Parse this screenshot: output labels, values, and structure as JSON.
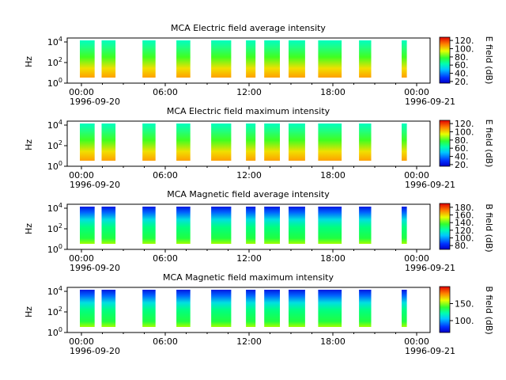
{
  "chart_data": [
    {
      "type": "heatmap",
      "title": "MCA  Electric field average intensity",
      "ylabel": "Hz",
      "yticks": [
        "10^0",
        "10^2",
        "10^4"
      ],
      "xticks": [
        "00:00",
        "06:00",
        "12:00",
        "18:00",
        "00:00"
      ],
      "xdates": [
        "1996-09-20",
        "1996-09-21"
      ],
      "colorbar": {
        "label": "E field (dB)",
        "ticks": [
          "20.",
          "40.",
          "60.",
          "80.",
          "100.",
          "120."
        ],
        "range": [
          16,
          128
        ]
      },
      "field": "E"
    },
    {
      "type": "heatmap",
      "title": "MCA  Electric field maximum intensity",
      "ylabel": "Hz",
      "yticks": [
        "10^0",
        "10^2",
        "10^4"
      ],
      "xticks": [
        "00:00",
        "06:00",
        "12:00",
        "18:00",
        "00:00"
      ],
      "xdates": [
        "1996-09-20",
        "1996-09-21"
      ],
      "colorbar": {
        "label": "E field (dB)",
        "ticks": [
          "20.",
          "40.",
          "60.",
          "80.",
          "100.",
          "120."
        ],
        "range": [
          16,
          128
        ]
      },
      "field": "E"
    },
    {
      "type": "heatmap",
      "title": "MCA  Magnetic field average intensity",
      "ylabel": "Hz",
      "yticks": [
        "10^0",
        "10^2",
        "10^4"
      ],
      "xticks": [
        "00:00",
        "06:00",
        "12:00",
        "18:00",
        "00:00"
      ],
      "xdates": [
        "1996-09-20",
        "1996-09-21"
      ],
      "colorbar": {
        "label": "B field (dB)",
        "ticks": [
          "80.",
          "100.",
          "120.",
          "140.",
          "160.",
          "180."
        ],
        "range": [
          70,
          190
        ]
      },
      "field": "B"
    },
    {
      "type": "heatmap",
      "title": "MCA  Magnetic field maximum intensity",
      "ylabel": "Hz",
      "yticks": [
        "10^0",
        "10^2",
        "10^4"
      ],
      "xticks": [
        "00:00",
        "06:00",
        "12:00",
        "18:00",
        "00:00"
      ],
      "xdates": [
        "1996-09-20",
        "1996-09-21"
      ],
      "colorbar": {
        "label": "B field (dB)",
        "ticks": [
          "100.",
          "150."
        ],
        "range": [
          65,
          200
        ]
      },
      "field": "B"
    }
  ]
}
